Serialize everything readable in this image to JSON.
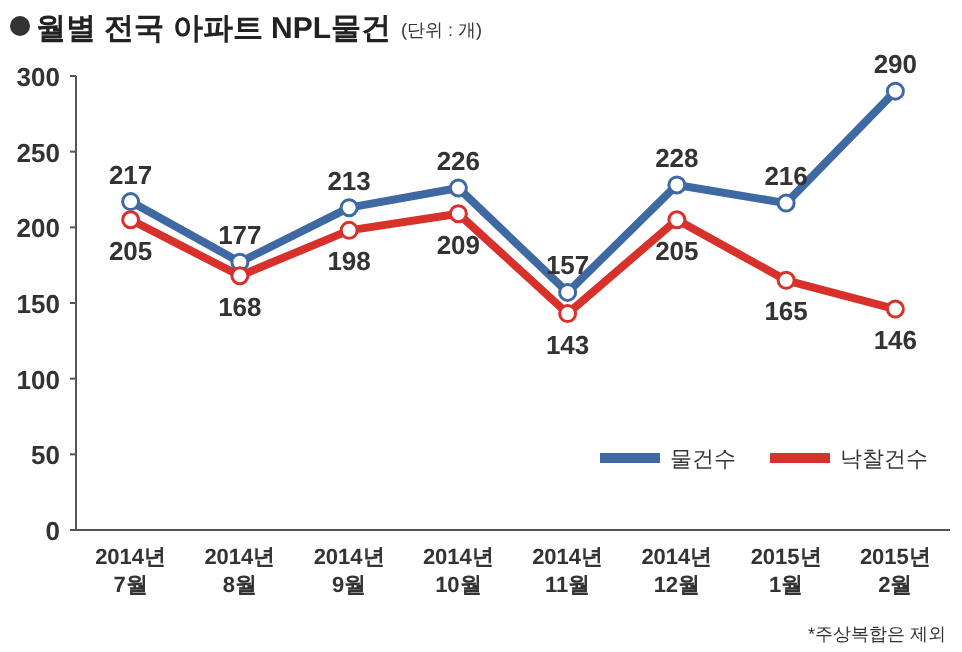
{
  "chart_data": {
    "type": "line",
    "title": "월별 전국 아파트 NPL물건",
    "subtitle": "(단위 : 개)",
    "categories": [
      "2014년 7월",
      "2014년 8월",
      "2014년 9월",
      "2014년 10월",
      "2014년 11월",
      "2014년 12월",
      "2015년 1월",
      "2015년 2월"
    ],
    "series": [
      {
        "name": "물건수",
        "color": "#3f69a3",
        "values": [
          217,
          177,
          213,
          226,
          157,
          228,
          216,
          290
        ]
      },
      {
        "name": "낙찰건수",
        "color": "#d8312b",
        "values": [
          205,
          168,
          198,
          209,
          143,
          205,
          165,
          146
        ]
      }
    ],
    "ylim": [
      0,
      300
    ],
    "yticks": [
      0,
      50,
      100,
      150,
      200,
      250,
      300
    ],
    "data_labels": true,
    "legend": "bottom right",
    "marker": "circle",
    "annotations": [
      "*주상복합은 제외"
    ]
  }
}
